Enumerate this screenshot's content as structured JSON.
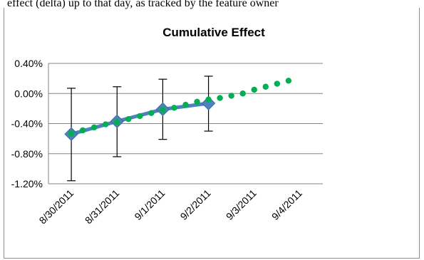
{
  "caption": "effect (delta) up to that day, as tracked by the feature owner",
  "chart_data": {
    "type": "line",
    "title": "Cumulative Effect",
    "categories": [
      "8/30/2011",
      "8/31/2011",
      "9/1/2011",
      "9/2/2011",
      "9/3/2011",
      "9/4/2011"
    ],
    "ylim": [
      -1.2,
      0.4
    ],
    "yticks": [
      0.4,
      0.0,
      -0.4,
      -0.8,
      -1.2
    ],
    "ytick_labels": [
      "0.40%",
      "0.00%",
      "-0.40%",
      "-0.80%",
      "-1.20%"
    ],
    "grid": true,
    "legend": "none",
    "series": [
      {
        "style": "solid line with diamond markers and error bars",
        "color": "#4f81bd",
        "x": [
          0,
          1,
          2,
          3
        ],
        "values": [
          -0.54,
          -0.37,
          -0.21,
          -0.13
        ],
        "error_low": [
          -1.16,
          -0.84,
          -0.61,
          -0.5
        ],
        "error_high": [
          0.07,
          0.09,
          0.19,
          0.23
        ]
      },
      {
        "style": "dotted trend line",
        "color": "#00b050",
        "x": [
          0,
          0.25,
          0.5,
          0.75,
          1,
          1.25,
          1.5,
          1.75,
          2,
          2.25,
          2.5,
          2.75,
          3,
          3.25,
          3.5,
          3.75,
          4,
          4.25,
          4.5,
          4.75
        ],
        "values": [
          -0.53,
          -0.49,
          -0.45,
          -0.41,
          -0.38,
          -0.34,
          -0.3,
          -0.26,
          -0.22,
          -0.19,
          -0.15,
          -0.11,
          -0.08,
          -0.06,
          -0.03,
          0.0,
          0.05,
          0.09,
          0.13,
          0.17
        ]
      }
    ]
  }
}
